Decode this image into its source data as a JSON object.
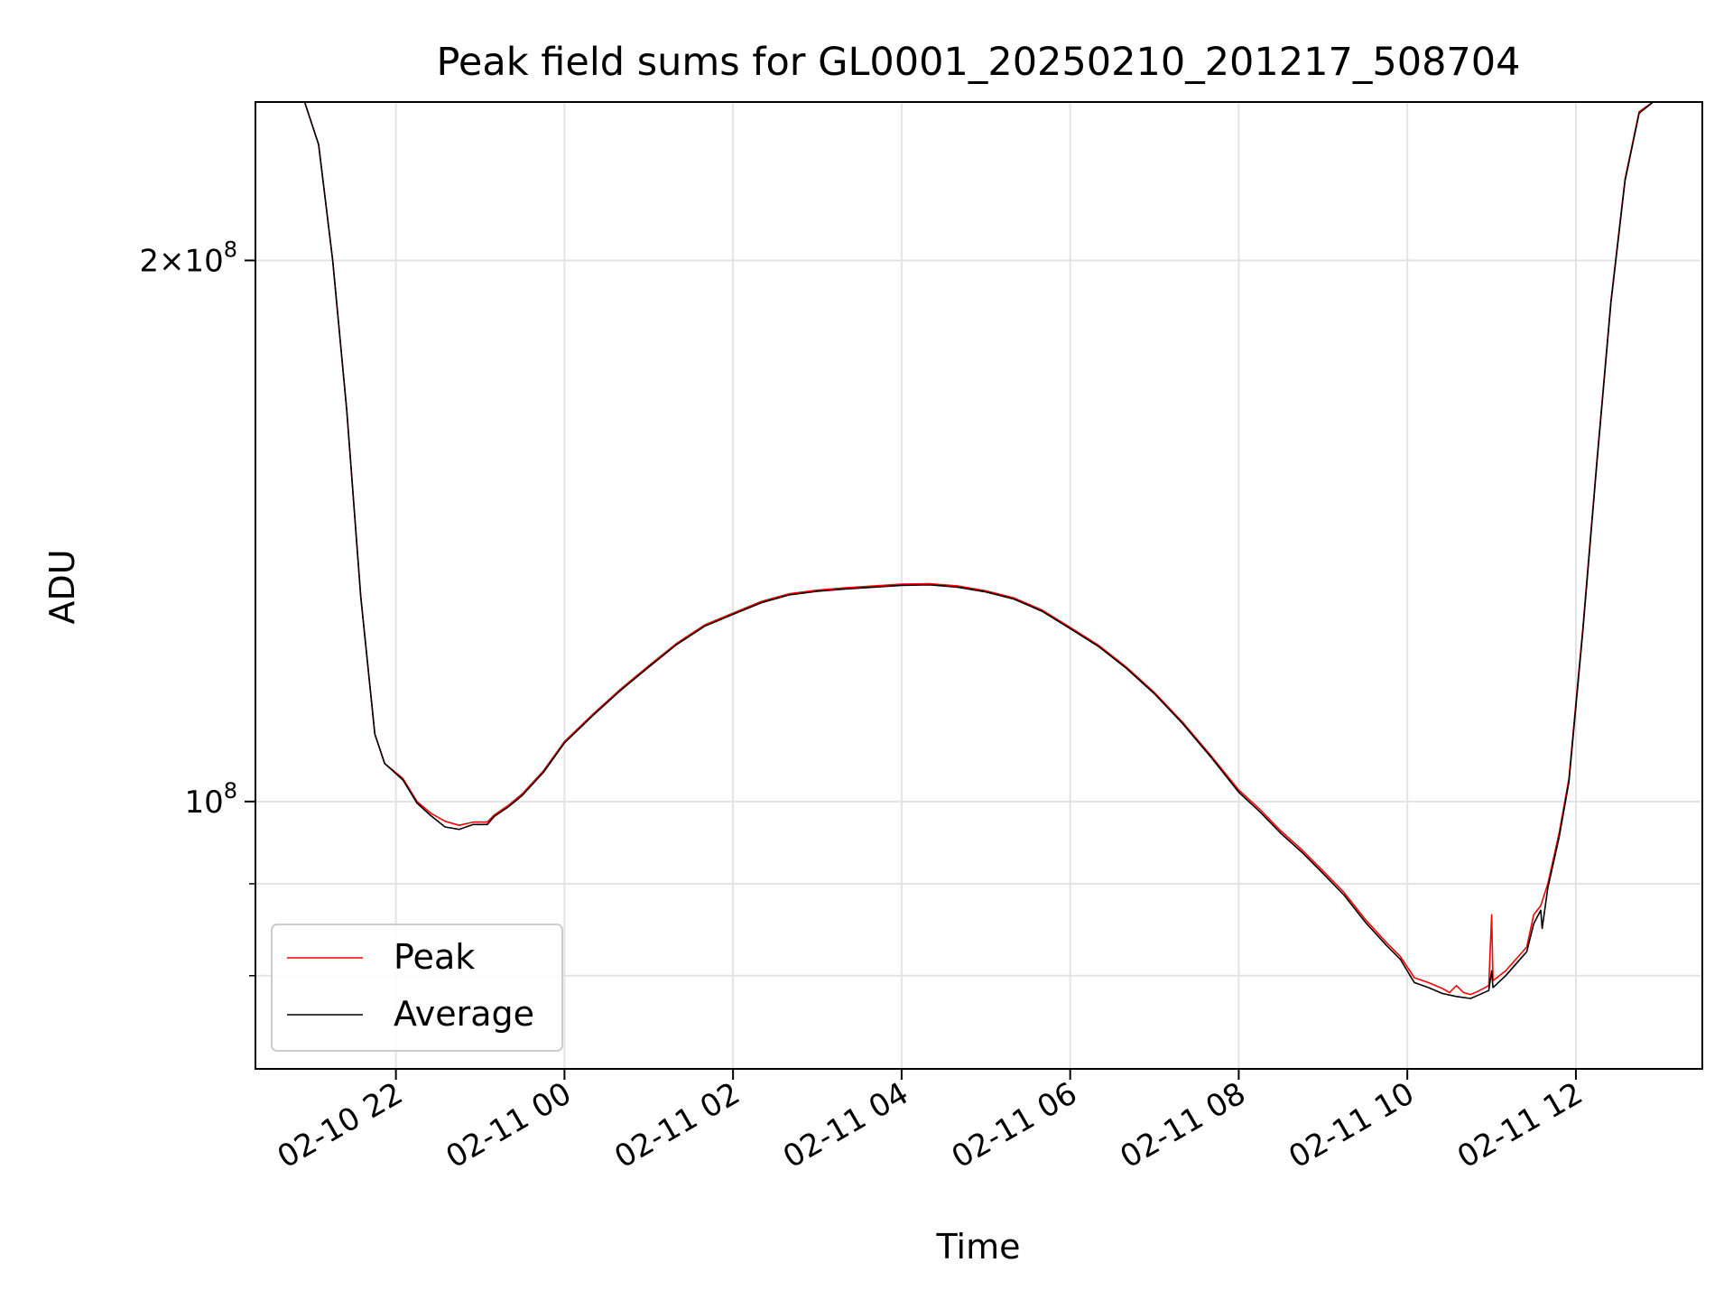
{
  "chart_data": {
    "type": "line",
    "title": "Peak field sums for GL0001_20250210_201217_508704",
    "xlabel": "Time",
    "ylabel": "ADU",
    "yscale": "log",
    "grid": true,
    "legend_position": "lower-left",
    "xlim": [
      "2025-02-10 20:20",
      "2025-02-11 13:30"
    ],
    "ylim": [
      71000000,
      245000000
    ],
    "x_ticks": [
      {
        "value": "2025-02-10 22:00",
        "label": "02-10 22"
      },
      {
        "value": "2025-02-11 00:00",
        "label": "02-11 00"
      },
      {
        "value": "2025-02-11 02:00",
        "label": "02-11 02"
      },
      {
        "value": "2025-02-11 04:00",
        "label": "02-11 04"
      },
      {
        "value": "2025-02-11 06:00",
        "label": "02-11 06"
      },
      {
        "value": "2025-02-11 08:00",
        "label": "02-11 08"
      },
      {
        "value": "2025-02-11 10:00",
        "label": "02-11 10"
      },
      {
        "value": "2025-02-11 12:00",
        "label": "02-11 12"
      }
    ],
    "y_major_ticks": [
      {
        "value": 100000000,
        "base": "10",
        "exp": "8",
        "coef": ""
      },
      {
        "value": 200000000,
        "base": "10",
        "exp": "8",
        "coef": "2×"
      }
    ],
    "y_minor_ticks": [
      80000000,
      90000000
    ],
    "series": [
      {
        "name": "Peak",
        "color": "#ff0000",
        "points": [
          [
            "2025-02-10 20:55",
            245000000
          ],
          [
            "2025-02-10 21:05",
            232000000
          ],
          [
            "2025-02-10 21:15",
            200000000
          ],
          [
            "2025-02-10 21:25",
            165000000
          ],
          [
            "2025-02-10 21:35",
            130000000
          ],
          [
            "2025-02-10 21:45",
            109000000
          ],
          [
            "2025-02-10 21:52",
            105000000
          ],
          [
            "2025-02-10 22:05",
            103000000
          ],
          [
            "2025-02-10 22:15",
            100000000
          ],
          [
            "2025-02-10 22:25",
            98500000
          ],
          [
            "2025-02-10 22:35",
            97500000
          ],
          [
            "2025-02-10 22:45",
            97000000
          ],
          [
            "2025-02-10 22:55",
            97400000
          ],
          [
            "2025-02-10 23:05",
            97400000
          ],
          [
            "2025-02-10 23:10",
            98300000
          ],
          [
            "2025-02-10 23:20",
            99500000
          ],
          [
            "2025-02-10 23:30",
            101000000
          ],
          [
            "2025-02-10 23:45",
            104000000
          ],
          [
            "2025-02-11 00:00",
            108000000
          ],
          [
            "2025-02-11 00:20",
            111800000
          ],
          [
            "2025-02-11 00:40",
            115500000
          ],
          [
            "2025-02-11 01:00",
            119000000
          ],
          [
            "2025-02-11 01:20",
            122500000
          ],
          [
            "2025-02-11 01:40",
            125400000
          ],
          [
            "2025-02-11 02:00",
            127300000
          ],
          [
            "2025-02-11 02:20",
            129200000
          ],
          [
            "2025-02-11 02:40",
            130500000
          ],
          [
            "2025-02-11 03:00",
            131100000
          ],
          [
            "2025-02-11 03:20",
            131500000
          ],
          [
            "2025-02-11 03:40",
            131800000
          ],
          [
            "2025-02-11 04:00",
            132100000
          ],
          [
            "2025-02-11 04:20",
            132200000
          ],
          [
            "2025-02-11 04:40",
            131800000
          ],
          [
            "2025-02-11 05:00",
            131000000
          ],
          [
            "2025-02-11 05:20",
            129800000
          ],
          [
            "2025-02-11 05:40",
            127800000
          ],
          [
            "2025-02-11 06:00",
            125000000
          ],
          [
            "2025-02-11 06:20",
            122200000
          ],
          [
            "2025-02-11 06:40",
            118800000
          ],
          [
            "2025-02-11 07:00",
            115000000
          ],
          [
            "2025-02-11 07:20",
            110700000
          ],
          [
            "2025-02-11 07:40",
            106100000
          ],
          [
            "2025-02-11 08:00",
            101500000
          ],
          [
            "2025-02-11 08:15",
            99000000
          ],
          [
            "2025-02-11 08:30",
            96300000
          ],
          [
            "2025-02-11 08:45",
            94000000
          ],
          [
            "2025-02-11 09:00",
            91500000
          ],
          [
            "2025-02-11 09:15",
            89000000
          ],
          [
            "2025-02-11 09:30",
            86000000
          ],
          [
            "2025-02-11 09:45",
            83500000
          ],
          [
            "2025-02-11 09:55",
            82000000
          ],
          [
            "2025-02-11 10:05",
            79800000
          ],
          [
            "2025-02-11 10:15",
            79300000
          ],
          [
            "2025-02-11 10:25",
            78700000
          ],
          [
            "2025-02-11 10:30",
            78300000
          ],
          [
            "2025-02-11 10:35",
            79000000
          ],
          [
            "2025-02-11 10:40",
            78300000
          ],
          [
            "2025-02-11 10:45",
            78100000
          ],
          [
            "2025-02-11 10:50",
            78400000
          ],
          [
            "2025-02-11 10:58",
            79000000
          ],
          [
            "2025-02-11 11:00",
            86500000
          ],
          [
            "2025-02-11 11:01",
            79500000
          ],
          [
            "2025-02-11 11:10",
            80500000
          ],
          [
            "2025-02-11 11:25",
            83000000
          ],
          [
            "2025-02-11 11:30",
            86500000
          ],
          [
            "2025-02-11 11:35",
            87500000
          ],
          [
            "2025-02-11 11:40",
            90000000
          ],
          [
            "2025-02-11 11:48",
            96000000
          ],
          [
            "2025-02-11 11:55",
            103000000
          ],
          [
            "2025-02-11 12:05",
            125000000
          ],
          [
            "2025-02-11 12:15",
            155000000
          ],
          [
            "2025-02-11 12:25",
            190000000
          ],
          [
            "2025-02-11 12:35",
            222000000
          ],
          [
            "2025-02-11 12:45",
            242000000
          ],
          [
            "2025-02-11 12:55",
            245000000
          ]
        ]
      },
      {
        "name": "Average",
        "color": "#000000",
        "points": [
          [
            "2025-02-10 20:55",
            245000000
          ],
          [
            "2025-02-10 21:05",
            232000000
          ],
          [
            "2025-02-10 21:15",
            200000000
          ],
          [
            "2025-02-10 21:25",
            165000000
          ],
          [
            "2025-02-10 21:35",
            130000000
          ],
          [
            "2025-02-10 21:45",
            109000000
          ],
          [
            "2025-02-10 21:52",
            105000000
          ],
          [
            "2025-02-10 22:05",
            102800000
          ],
          [
            "2025-02-10 22:15",
            99800000
          ],
          [
            "2025-02-10 22:25",
            98200000
          ],
          [
            "2025-02-10 22:35",
            96800000
          ],
          [
            "2025-02-10 22:45",
            96500000
          ],
          [
            "2025-02-10 22:55",
            97100000
          ],
          [
            "2025-02-10 23:05",
            97100000
          ],
          [
            "2025-02-10 23:10",
            98100000
          ],
          [
            "2025-02-10 23:20",
            99300000
          ],
          [
            "2025-02-10 23:30",
            100800000
          ],
          [
            "2025-02-10 23:45",
            103800000
          ],
          [
            "2025-02-11 00:00",
            107800000
          ],
          [
            "2025-02-11 00:20",
            111600000
          ],
          [
            "2025-02-11 00:40",
            115300000
          ],
          [
            "2025-02-11 01:00",
            118800000
          ],
          [
            "2025-02-11 01:20",
            122300000
          ],
          [
            "2025-02-11 01:40",
            125200000
          ],
          [
            "2025-02-11 02:00",
            127100000
          ],
          [
            "2025-02-11 02:20",
            129000000
          ],
          [
            "2025-02-11 02:40",
            130300000
          ],
          [
            "2025-02-11 03:00",
            130900000
          ],
          [
            "2025-02-11 03:20",
            131300000
          ],
          [
            "2025-02-11 03:40",
            131600000
          ],
          [
            "2025-02-11 04:00",
            131900000
          ],
          [
            "2025-02-11 04:20",
            132000000
          ],
          [
            "2025-02-11 04:40",
            131600000
          ],
          [
            "2025-02-11 05:00",
            130800000
          ],
          [
            "2025-02-11 05:20",
            129600000
          ],
          [
            "2025-02-11 05:40",
            127600000
          ],
          [
            "2025-02-11 06:00",
            124800000
          ],
          [
            "2025-02-11 06:20",
            122000000
          ],
          [
            "2025-02-11 06:40",
            118600000
          ],
          [
            "2025-02-11 07:00",
            114800000
          ],
          [
            "2025-02-11 07:20",
            110500000
          ],
          [
            "2025-02-11 07:40",
            105900000
          ],
          [
            "2025-02-11 08:00",
            101200000
          ],
          [
            "2025-02-11 08:15",
            98700000
          ],
          [
            "2025-02-11 08:30",
            96000000
          ],
          [
            "2025-02-11 08:45",
            93700000
          ],
          [
            "2025-02-11 09:00",
            91200000
          ],
          [
            "2025-02-11 09:15",
            88700000
          ],
          [
            "2025-02-11 09:30",
            85700000
          ],
          [
            "2025-02-11 09:45",
            83200000
          ],
          [
            "2025-02-11 09:55",
            81700000
          ],
          [
            "2025-02-11 10:05",
            79300000
          ],
          [
            "2025-02-11 10:15",
            78800000
          ],
          [
            "2025-02-11 10:25",
            78200000
          ],
          [
            "2025-02-11 10:35",
            77900000
          ],
          [
            "2025-02-11 10:45",
            77700000
          ],
          [
            "2025-02-11 10:50",
            78000000
          ],
          [
            "2025-02-11 10:58",
            78500000
          ],
          [
            "2025-02-11 11:00",
            80500000
          ],
          [
            "2025-02-11 11:01",
            78800000
          ],
          [
            "2025-02-11 11:10",
            80000000
          ],
          [
            "2025-02-11 11:25",
            82500000
          ],
          [
            "2025-02-11 11:30",
            85500000
          ],
          [
            "2025-02-11 11:35",
            87000000
          ],
          [
            "2025-02-11 11:36",
            85000000
          ],
          [
            "2025-02-11 11:40",
            89500000
          ],
          [
            "2025-02-11 11:48",
            95500000
          ],
          [
            "2025-02-11 11:55",
            102500000
          ],
          [
            "2025-02-11 12:05",
            124500000
          ],
          [
            "2025-02-11 12:15",
            154500000
          ],
          [
            "2025-02-11 12:25",
            189500000
          ],
          [
            "2025-02-11 12:35",
            221500000
          ],
          [
            "2025-02-11 12:45",
            241500000
          ],
          [
            "2025-02-11 12:55",
            245000000
          ]
        ]
      }
    ]
  }
}
